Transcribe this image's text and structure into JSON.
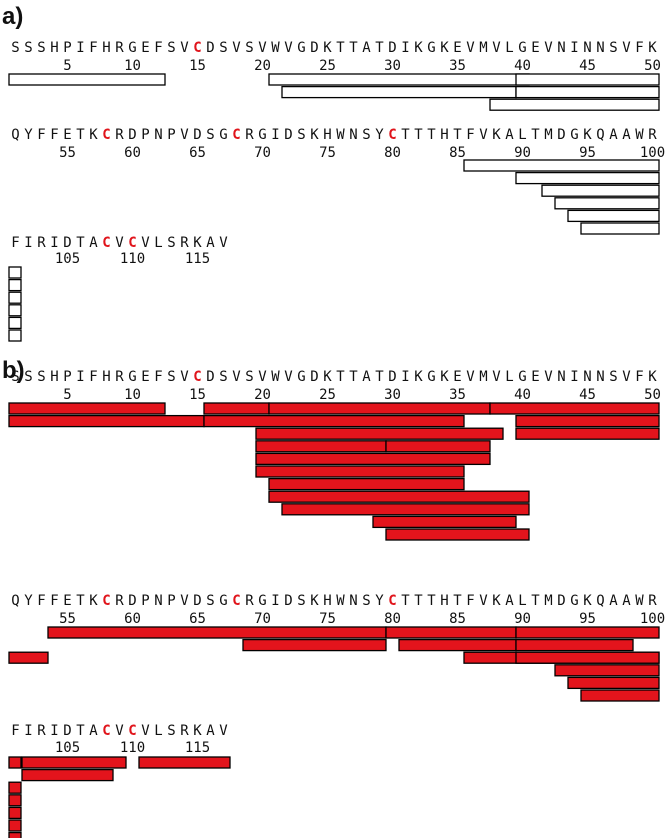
{
  "colors": {
    "cys": "#e0141b",
    "peptide_fill_b": "#e3141c",
    "peptide_fill_a": "#ffffff",
    "stroke": "#000000",
    "text": "#111111"
  },
  "sequence_lines": [
    "SSSHPIFHRGEFSVCDSVSVWVGDKTTATDIKGKEVMVLGEVNINNSVFK",
    "QYFFETKCRDPNPVDSGCRGIDSKHWNSYCTTTHTFVKALTMDGKQAAWR",
    "FIRIDTACVCVLSRKAV"
  ],
  "line_start_residue": [
    1,
    51,
    101
  ],
  "tick_labels": [
    [
      "5",
      "10",
      "15",
      "20",
      "25",
      "30",
      "35",
      "40",
      "45",
      "50"
    ],
    [
      "55",
      "60",
      "65",
      "70",
      "75",
      "80",
      "85",
      "90",
      "95",
      "100"
    ],
    [
      "105",
      "110",
      "115"
    ]
  ],
  "panels": [
    {
      "label": "a)",
      "fill": "white",
      "peptides": [
        [
          1,
          12
        ],
        [
          21,
          40
        ],
        [
          22,
          39
        ],
        [
          40,
          50
        ],
        [
          40,
          50
        ],
        [
          38,
          50
        ],
        [
          86,
          100
        ],
        [
          90,
          100
        ],
        [
          92,
          100
        ],
        [
          93,
          100
        ],
        [
          94,
          100
        ],
        [
          95,
          100
        ],
        [
          101,
          101
        ],
        [
          101,
          101
        ],
        [
          101,
          101
        ],
        [
          101,
          101
        ],
        [
          101,
          101
        ],
        [
          101,
          101
        ]
      ],
      "peptide_rows": [
        0,
        0,
        1,
        0,
        1,
        2,
        0,
        1,
        2,
        3,
        4,
        5,
        0,
        1,
        2,
        3,
        4,
        5
      ]
    },
    {
      "label": "b)",
      "fill": "red",
      "peptides": [
        [
          1,
          12
        ],
        [
          16,
          20
        ],
        [
          21,
          37
        ],
        [
          38,
          50
        ],
        [
          1,
          15
        ],
        [
          16,
          35
        ],
        [
          40,
          50
        ],
        [
          20,
          38
        ],
        [
          40,
          50
        ],
        [
          20,
          29
        ],
        [
          30,
          37
        ],
        [
          20,
          37
        ],
        [
          20,
          35
        ],
        [
          21,
          35
        ],
        [
          21,
          40
        ],
        [
          22,
          40
        ],
        [
          29,
          39
        ],
        [
          30,
          40
        ],
        [
          54,
          79
        ],
        [
          80,
          89
        ],
        [
          90,
          100
        ],
        [
          69,
          79
        ],
        [
          81,
          89
        ],
        [
          90,
          98
        ],
        [
          51,
          53
        ],
        [
          86,
          100
        ],
        [
          90,
          100
        ],
        [
          93,
          100
        ],
        [
          94,
          100
        ],
        [
          95,
          100
        ],
        [
          101,
          101
        ],
        [
          102,
          109
        ],
        [
          111,
          117
        ],
        [
          102,
          108
        ],
        [
          101,
          101
        ],
        [
          101,
          101
        ],
        [
          101,
          101
        ],
        [
          101,
          101
        ],
        [
          101,
          101
        ]
      ],
      "peptide_rows": [
        0,
        0,
        0,
        0,
        1,
        1,
        1,
        2,
        2,
        3,
        3,
        4,
        5,
        6,
        7,
        8,
        9,
        10,
        0,
        0,
        0,
        1,
        1,
        1,
        2,
        2,
        2,
        3,
        4,
        5,
        0,
        0,
        0,
        1,
        2,
        3,
        4,
        5,
        6
      ]
    }
  ]
}
